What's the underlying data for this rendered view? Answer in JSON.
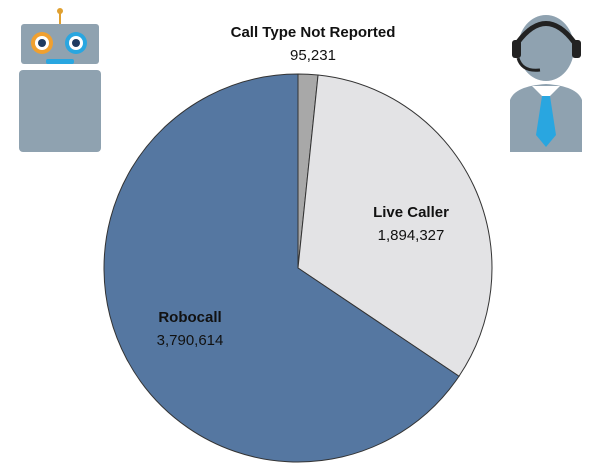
{
  "chart_data": {
    "type": "pie",
    "categories": [
      "Call Type Not Reported",
      "Live Caller",
      "Robocall"
    ],
    "values": [
      95231,
      1894327,
      3790614
    ],
    "value_labels": [
      "95,231",
      "1,894,327",
      "3,790,614"
    ],
    "colors": [
      "#a8a8a8",
      "#e3e3e5",
      "#5577a1"
    ]
  }
}
